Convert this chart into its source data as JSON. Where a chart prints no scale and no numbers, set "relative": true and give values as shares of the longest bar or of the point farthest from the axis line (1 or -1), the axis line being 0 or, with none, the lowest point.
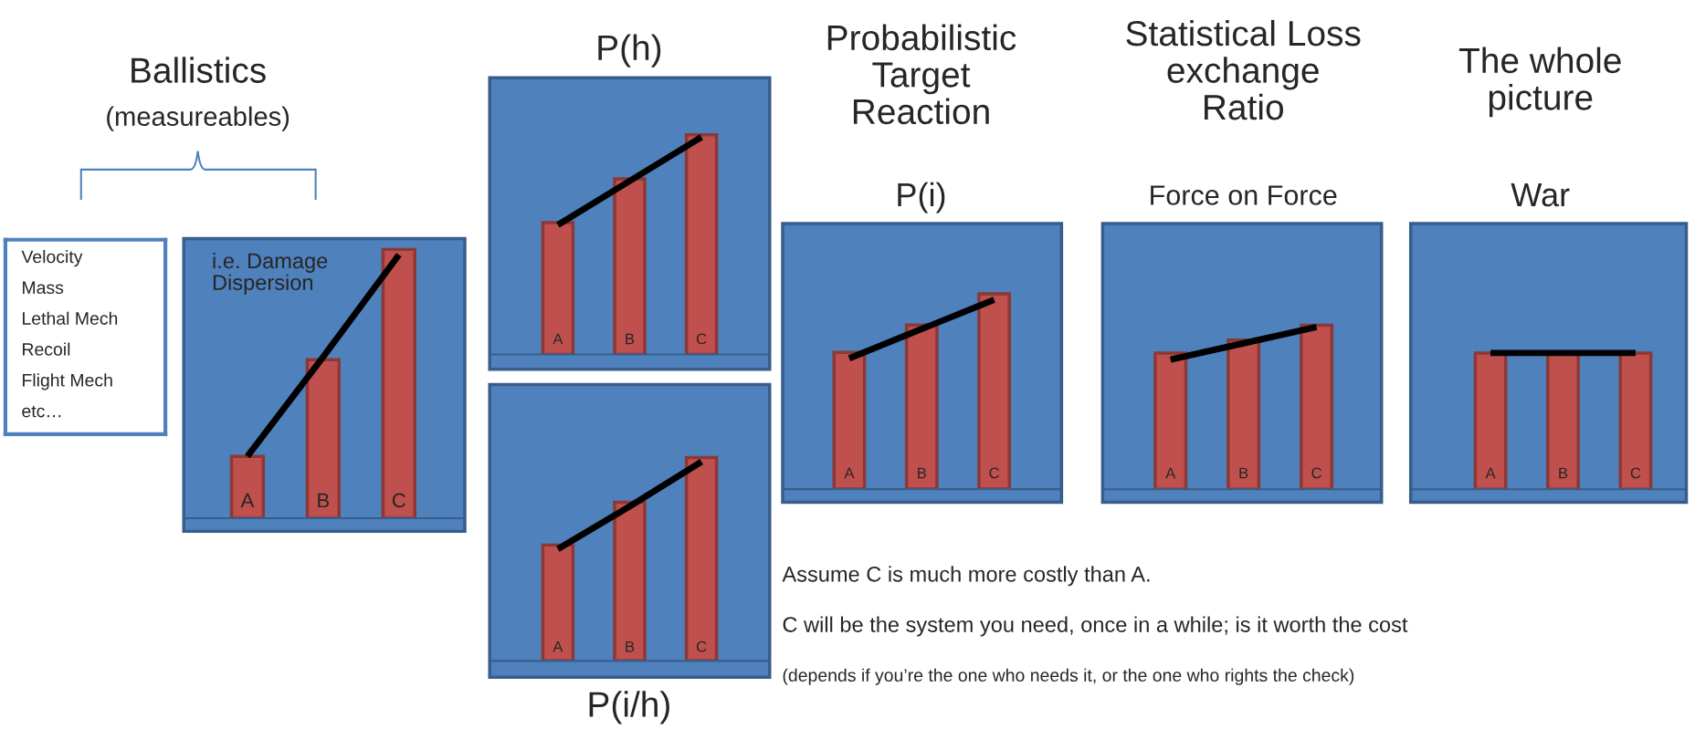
{
  "chart_data": [
    {
      "type": "other",
      "annotations": [
        "Velocity",
        "Mass",
        "Lethal Mech",
        "Recoil",
        "Flight Mech",
        "etc…"
      ]
    },
    {
      "type": "bar",
      "relative": true,
      "title": "Ballistics",
      "subtitle": "(measureables)",
      "annotations": [
        "i.e. Damage\nDispersion"
      ],
      "categories": [
        "A",
        "B",
        "C"
      ],
      "series": [
        {
          "values": [
            0.23,
            0.59,
            1.0
          ],
          "color": "#c0504d"
        },
        {
          "type": "line",
          "values": [
            0.23,
            0.6,
            0.98
          ],
          "color": "#000000"
        }
      ]
    },
    {
      "type": "bar",
      "relative": true,
      "title": "P(h)",
      "categories": [
        "A",
        "B",
        "C"
      ],
      "series": [
        {
          "values": [
            0.6,
            0.8,
            1.0
          ],
          "color": "#c0504d"
        },
        {
          "type": "line",
          "values": [
            0.59,
            0.79,
            0.99
          ],
          "color": "#000000"
        }
      ]
    },
    {
      "type": "bar",
      "relative": true,
      "xlabel": "P(i/h)",
      "categories": [
        "A",
        "B",
        "C"
      ],
      "series": [
        {
          "values": [
            0.57,
            0.78,
            1.0
          ],
          "color": "#c0504d"
        },
        {
          "type": "line",
          "values": [
            0.55,
            0.76,
            0.98
          ],
          "color": "#000000"
        }
      ]
    },
    {
      "type": "bar",
      "relative": true,
      "title": "Probabilistic\nTarget\nReaction",
      "subtitle": "P(i)",
      "categories": [
        "A",
        "B",
        "C"
      ],
      "series": [
        {
          "values": [
            0.7,
            0.84,
            1.0
          ],
          "color": "#c0504d"
        },
        {
          "type": "line",
          "values": [
            0.67,
            0.82,
            0.97
          ],
          "color": "#000000"
        }
      ]
    },
    {
      "type": "bar",
      "relative": true,
      "title": "Statistical Loss\nexchange\nRatio",
      "subtitle": "Force on Force",
      "categories": [
        "A",
        "B",
        "C"
      ],
      "series": [
        {
          "values": [
            0.83,
            0.91,
            1.0
          ],
          "color": "#c0504d"
        },
        {
          "type": "line",
          "values": [
            0.79,
            0.89,
            0.99
          ],
          "color": "#000000"
        }
      ]
    },
    {
      "type": "bar",
      "relative": true,
      "title": "The whole\npicture",
      "subtitle": "War",
      "categories": [
        "A",
        "B",
        "C"
      ],
      "series": [
        {
          "values": [
            1.0,
            1.0,
            1.0
          ],
          "color": "#c0504d"
        },
        {
          "type": "line",
          "values": [
            1.0,
            1.0,
            1.0
          ],
          "color": "#000000"
        }
      ]
    },
    {
      "type": "other",
      "annotations": [
        "Assume C is much more costly than A.",
        "C will be the system you need, once in a while; is it worth the cost",
        "(depends if you’re the one who needs it, or the one who rights the check)"
      ]
    }
  ]
}
